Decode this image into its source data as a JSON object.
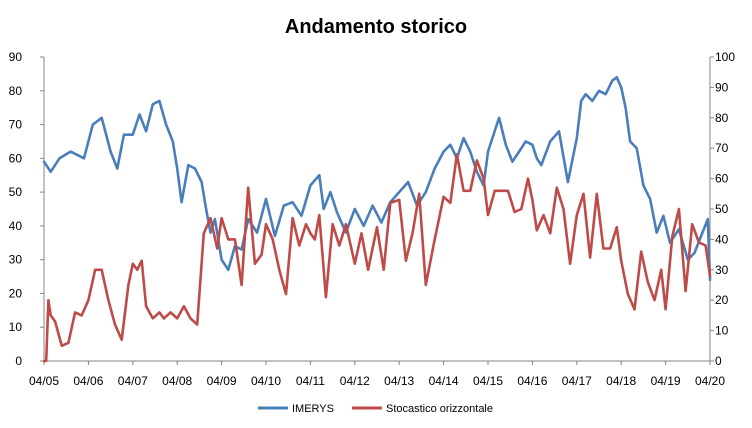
{
  "chart_data": {
    "type": "line",
    "title": "Andamento storico",
    "x_ticks": [
      "04/05",
      "04/06",
      "04/07",
      "04/08",
      "04/09",
      "04/10",
      "04/11",
      "04/12",
      "04/13",
      "04/14",
      "04/15",
      "04/16",
      "04/17",
      "04/18",
      "04/19",
      "04/20"
    ],
    "y_left": {
      "min": 0,
      "max": 90,
      "step": 10,
      "ticks": [
        "0",
        "10",
        "20",
        "30",
        "40",
        "50",
        "60",
        "70",
        "80",
        "90"
      ]
    },
    "y_right": {
      "min": 0,
      "max": 100,
      "step": 10,
      "ticks": [
        "0",
        "10",
        "20",
        "30",
        "40",
        "50",
        "60",
        "70",
        "80",
        "90",
        "100"
      ]
    },
    "grid": false,
    "legend_position": "bottom",
    "series": [
      {
        "name": "IMERYS",
        "axis": "left",
        "color": "#4a7ebb",
        "x": [
          2005.0,
          2005.15,
          2005.35,
          2005.6,
          2005.9,
          2006.1,
          2006.3,
          2006.5,
          2006.65,
          2006.8,
          2007.0,
          2007.15,
          2007.3,
          2007.45,
          2007.6,
          2007.75,
          2007.9,
          2008.0,
          2008.1,
          2008.25,
          2008.4,
          2008.55,
          2008.65,
          2008.75,
          2008.85,
          2009.0,
          2009.15,
          2009.3,
          2009.45,
          2009.6,
          2009.8,
          2010.0,
          2010.2,
          2010.4,
          2010.6,
          2010.8,
          2011.0,
          2011.2,
          2011.3,
          2011.45,
          2011.6,
          2011.8,
          2012.0,
          2012.2,
          2012.4,
          2012.6,
          2012.8,
          2013.0,
          2013.2,
          2013.4,
          2013.6,
          2013.8,
          2014.0,
          2014.15,
          2014.3,
          2014.45,
          2014.6,
          2014.75,
          2014.9,
          2015.0,
          2015.1,
          2015.25,
          2015.4,
          2015.55,
          2015.7,
          2015.85,
          2016.0,
          2016.1,
          2016.2,
          2016.4,
          2016.6,
          2016.8,
          2017.0,
          2017.1,
          2017.2,
          2017.35,
          2017.5,
          2017.65,
          2017.8,
          2017.9,
          2018.0,
          2018.1,
          2018.2,
          2018.35,
          2018.5,
          2018.65,
          2018.8,
          2018.95,
          2019.1,
          2019.3,
          2019.5,
          2019.65,
          2019.8,
          2019.95,
          2020.0
        ],
        "values": [
          59,
          56,
          60,
          62,
          60,
          70,
          72,
          62,
          57,
          67,
          67,
          73,
          68,
          76,
          77,
          70,
          65,
          57,
          47,
          58,
          57,
          53,
          45,
          38,
          42,
          30,
          27,
          34,
          33,
          42,
          38,
          48,
          37,
          46,
          47,
          43,
          52,
          55,
          45,
          50,
          44,
          38,
          45,
          40,
          46,
          41,
          47,
          50,
          53,
          46,
          50,
          57,
          62,
          64,
          60,
          66,
          62,
          56,
          52,
          62,
          66,
          72,
          64,
          59,
          62,
          65,
          64,
          60,
          58,
          65,
          68,
          53,
          66,
          77,
          79,
          77,
          80,
          79,
          83,
          84,
          81,
          75,
          65,
          63,
          52,
          48,
          38,
          43,
          35,
          39,
          30,
          32,
          37,
          42,
          24
        ]
      },
      {
        "name": "Stocastico orizzontale",
        "axis": "right",
        "color": "#be4b48",
        "x": [
          2005.0,
          2005.05,
          2005.1,
          2005.15,
          2005.25,
          2005.4,
          2005.55,
          2005.7,
          2005.85,
          2006.0,
          2006.15,
          2006.3,
          2006.45,
          2006.6,
          2006.75,
          2006.9,
          2007.0,
          2007.1,
          2007.2,
          2007.3,
          2007.45,
          2007.6,
          2007.7,
          2007.85,
          2008.0,
          2008.15,
          2008.3,
          2008.45,
          2008.6,
          2008.75,
          2008.9,
          2009.0,
          2009.15,
          2009.3,
          2009.45,
          2009.6,
          2009.75,
          2009.9,
          2010.0,
          2010.15,
          2010.3,
          2010.45,
          2010.6,
          2010.75,
          2010.9,
          2011.0,
          2011.1,
          2011.2,
          2011.35,
          2011.5,
          2011.65,
          2011.8,
          2012.0,
          2012.15,
          2012.3,
          2012.5,
          2012.65,
          2012.8,
          2013.0,
          2013.15,
          2013.3,
          2013.45,
          2013.6,
          2013.8,
          2014.0,
          2014.15,
          2014.3,
          2014.45,
          2014.6,
          2014.75,
          2014.9,
          2015.0,
          2015.15,
          2015.3,
          2015.45,
          2015.6,
          2015.75,
          2015.9,
          2016.0,
          2016.1,
          2016.25,
          2016.4,
          2016.55,
          2016.7,
          2016.85,
          2017.0,
          2017.15,
          2017.3,
          2017.45,
          2017.6,
          2017.75,
          2017.9,
          2018.0,
          2018.15,
          2018.3,
          2018.45,
          2018.6,
          2018.75,
          2018.9,
          2019.0,
          2019.15,
          2019.3,
          2019.45,
          2019.6,
          2019.75,
          2019.9,
          2020.0
        ],
        "values": [
          0,
          0,
          20,
          15,
          13,
          5,
          6,
          16,
          15,
          20,
          30,
          30,
          20,
          12,
          7,
          25,
          32,
          30,
          33,
          18,
          14,
          16,
          14,
          16,
          14,
          18,
          14,
          12,
          42,
          47,
          37,
          47,
          40,
          40,
          25,
          57,
          32,
          35,
          45,
          40,
          30,
          22,
          47,
          38,
          45,
          42,
          40,
          48,
          21,
          45,
          38,
          45,
          32,
          42,
          30,
          44,
          30,
          52,
          53,
          33,
          42,
          55,
          25,
          40,
          54,
          52,
          68,
          56,
          56,
          66,
          60,
          48,
          56,
          56,
          56,
          49,
          50,
          60,
          53,
          43,
          48,
          42,
          57,
          50,
          32,
          48,
          55,
          34,
          55,
          37,
          37,
          44,
          33,
          22,
          17,
          36,
          26,
          20,
          30,
          17,
          41,
          50,
          23,
          45,
          39,
          38,
          28
        ]
      }
    ]
  }
}
